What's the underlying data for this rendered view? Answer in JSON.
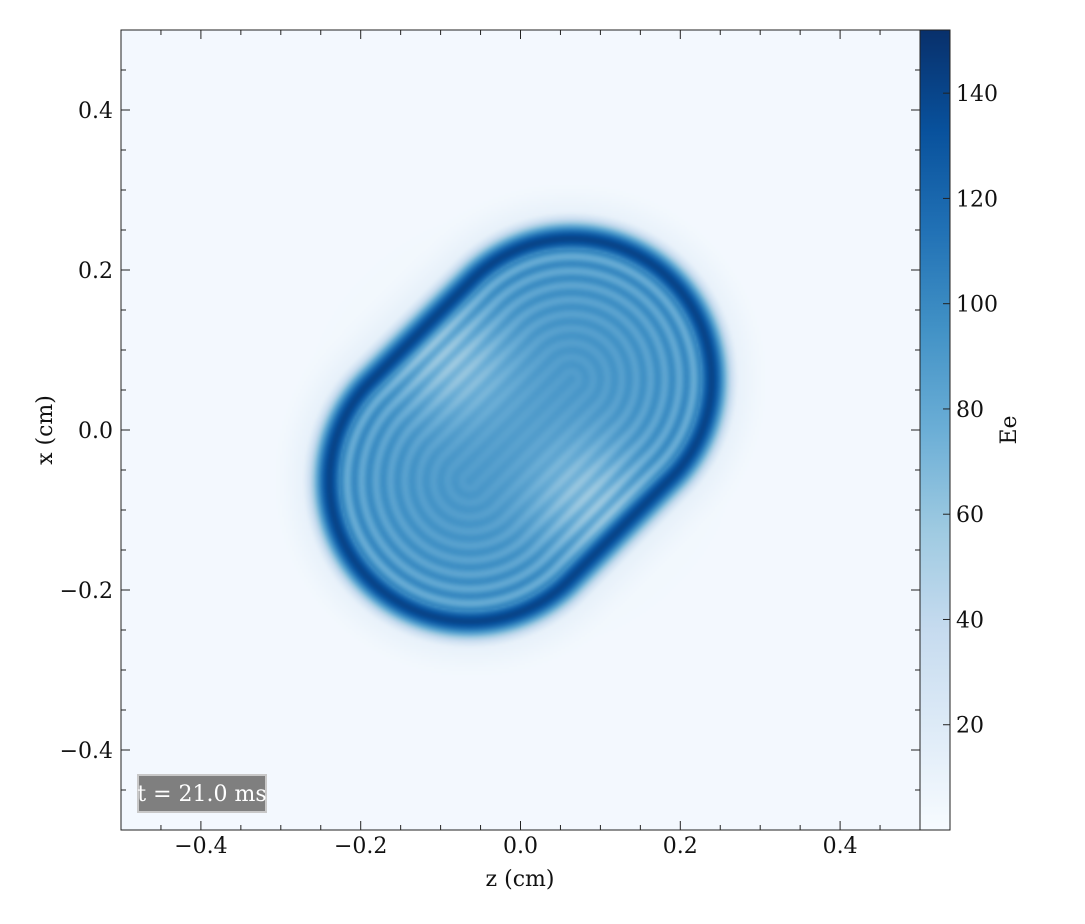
{
  "chart_data": {
    "type": "heatmap",
    "title": "",
    "xlabel": "z  (cm)",
    "ylabel": "x  (cm)",
    "xlim": [
      -0.5,
      0.5
    ],
    "ylim": [
      -0.5,
      0.5
    ],
    "x_ticks": [
      -0.4,
      -0.2,
      0.0,
      0.2,
      0.4
    ],
    "x_tick_labels": [
      "−0.4",
      "−0.2",
      "0.0",
      "0.2",
      "0.4"
    ],
    "y_ticks": [
      -0.4,
      -0.2,
      0.0,
      0.2,
      0.4
    ],
    "y_tick_labels": [
      "−0.4",
      "−0.2",
      "0.0",
      "0.2",
      "0.4"
    ],
    "grid": false,
    "colorbar": {
      "label": "Ee",
      "range": [
        0,
        152
      ],
      "ticks": [
        20,
        40,
        60,
        80,
        100,
        120,
        140
      ],
      "tick_labels": [
        "20",
        "40",
        "60",
        "80",
        "100",
        "120",
        "140"
      ],
      "colormap": "Blues",
      "colors": [
        "#f7fbff",
        "#deebf7",
        "#c6dbef",
        "#9ecae1",
        "#6baed6",
        "#4292c6",
        "#2171b5",
        "#08519c",
        "#08306b"
      ]
    },
    "annotation": "t = 21.0 ms",
    "field": {
      "background_value": 3,
      "core": {
        "center": [
          0.0,
          0.0
        ],
        "angle_deg": 45,
        "semi_major": 0.27,
        "semi_minor": 0.18,
        "value": 90,
        "shape": "stadium"
      },
      "rim": {
        "value": 140,
        "width": 0.015
      },
      "inner_rings": {
        "count": 4,
        "spacing": 0.018,
        "amplitude": 15
      },
      "halo": {
        "value": 12,
        "extent": 0.07
      },
      "outer_haze": {
        "value": 4,
        "radius": 0.33
      },
      "light_patches": [
        {
          "center": [
            -0.08,
            0.08
          ],
          "value": 65
        },
        {
          "center": [
            0.08,
            -0.08
          ],
          "value": 65
        }
      ]
    }
  }
}
